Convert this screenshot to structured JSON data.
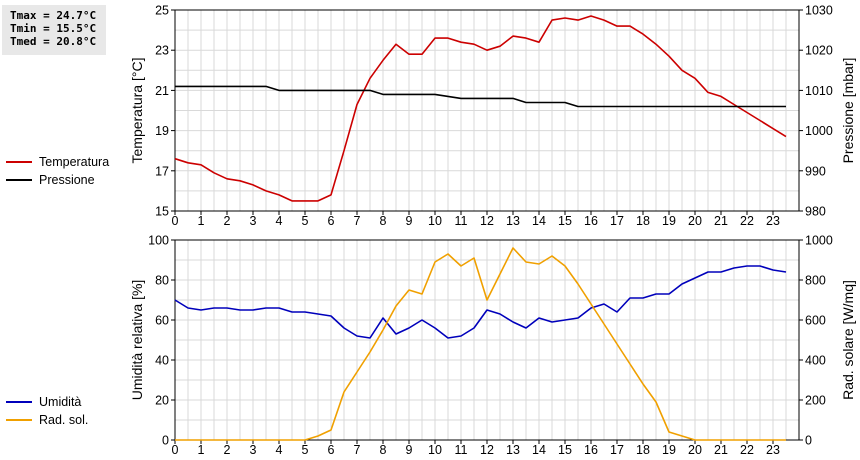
{
  "stats": {
    "tmax": "Tmax = 24.7°C",
    "tmin": "Tmin = 15.5°C",
    "tmed": "Tmed = 20.8°C"
  },
  "legend_top": [
    {
      "label": "Temperatura",
      "color": "#cc0000"
    },
    {
      "label": "Pressione",
      "color": "#000000"
    }
  ],
  "legend_bottom": [
    {
      "label": "Umidità",
      "color": "#0000bb"
    },
    {
      "label": "Rad. sol.",
      "color": "#f0a000"
    }
  ],
  "chart_data": [
    {
      "type": "line",
      "x_ticks": [
        "0",
        "1",
        "2",
        "3",
        "4",
        "5",
        "6",
        "7",
        "8",
        "9",
        "10",
        "11",
        "12",
        "13",
        "14",
        "15",
        "16",
        "17",
        "18",
        "19",
        "20",
        "21",
        "22",
        "23"
      ],
      "xlim": [
        0,
        24
      ],
      "ylabel": "Temperatura [°C]",
      "ylim": [
        15,
        25
      ],
      "yticks": [
        "15",
        "17",
        "19",
        "21",
        "23",
        "25"
      ],
      "y2label": "Pressione [mbar]",
      "y2lim": [
        980,
        1030
      ],
      "y2ticks": [
        "980",
        "990",
        "1000",
        "1010",
        "1020",
        "1030"
      ],
      "grid": true,
      "series": [
        {
          "name": "Temperatura",
          "axis": "left",
          "color": "#cc0000",
          "x": [
            0,
            0.5,
            1,
            1.5,
            2,
            2.5,
            3,
            3.5,
            4,
            4.5,
            5,
            5.5,
            6,
            6.5,
            7,
            7.5,
            8,
            8.5,
            9,
            9.5,
            10,
            10.5,
            11,
            11.5,
            12,
            12.5,
            13,
            13.5,
            14,
            14.5,
            15,
            15.5,
            16,
            16.5,
            17,
            17.5,
            18,
            18.5,
            19,
            19.5,
            20,
            20.5,
            21,
            21.5,
            22,
            22.5,
            23,
            23.5
          ],
          "values": [
            17.6,
            17.4,
            17.3,
            16.9,
            16.6,
            16.5,
            16.3,
            16.0,
            15.8,
            15.5,
            15.5,
            15.5,
            15.8,
            18.0,
            20.3,
            21.6,
            22.5,
            23.3,
            22.8,
            22.8,
            23.6,
            23.6,
            23.4,
            23.3,
            23.0,
            23.2,
            23.7,
            23.6,
            23.4,
            24.5,
            24.6,
            24.5,
            24.7,
            24.5,
            24.2,
            24.2,
            23.8,
            23.3,
            22.7,
            22.0,
            21.6,
            20.9,
            20.7,
            20.3,
            19.9,
            19.5,
            19.1,
            18.7
          ]
        },
        {
          "name": "Pressione",
          "axis": "right",
          "color": "#000000",
          "x": [
            0,
            3.5,
            4,
            7.5,
            8,
            9.5,
            10,
            11,
            11.5,
            13,
            13.5,
            15,
            15.5,
            23.5
          ],
          "values": [
            1011,
            1011,
            1010,
            1010,
            1009,
            1009,
            1009,
            1008,
            1008,
            1008,
            1007,
            1007,
            1006,
            1006
          ]
        }
      ]
    },
    {
      "type": "line",
      "x_ticks": [
        "0",
        "1",
        "2",
        "3",
        "4",
        "5",
        "6",
        "7",
        "8",
        "9",
        "10",
        "11",
        "12",
        "13",
        "14",
        "15",
        "16",
        "17",
        "18",
        "19",
        "20",
        "21",
        "22",
        "23"
      ],
      "xlim": [
        0,
        24
      ],
      "ylabel": "Umidità relativa [%]",
      "ylim": [
        0,
        100
      ],
      "yticks": [
        "0",
        "20",
        "40",
        "60",
        "80",
        "100"
      ],
      "y2label": "Rad. solare [W/mq]",
      "y2lim": [
        0,
        1000
      ],
      "y2ticks": [
        "0",
        "200",
        "400",
        "600",
        "800",
        "1000"
      ],
      "grid": true,
      "series": [
        {
          "name": "Umidità",
          "axis": "left",
          "color": "#0000bb",
          "x": [
            0,
            0.5,
            1,
            1.5,
            2,
            2.5,
            3,
            3.5,
            4,
            4.5,
            5,
            5.5,
            6,
            6.5,
            7,
            7.5,
            8,
            8.5,
            9,
            9.5,
            10,
            10.5,
            11,
            11.5,
            12,
            12.5,
            13,
            13.5,
            14,
            14.5,
            15,
            15.5,
            16,
            16.5,
            17,
            17.5,
            18,
            18.5,
            19,
            19.5,
            20,
            20.5,
            21,
            21.5,
            22,
            22.5,
            23,
            23.5
          ],
          "values": [
            70,
            66,
            65,
            66,
            66,
            65,
            65,
            66,
            66,
            64,
            64,
            63,
            62,
            56,
            52,
            51,
            61,
            53,
            56,
            60,
            56,
            51,
            52,
            56,
            65,
            63,
            59,
            56,
            61,
            59,
            60,
            61,
            66,
            68,
            64,
            71,
            71,
            73,
            73,
            78,
            81,
            84,
            84,
            86,
            87,
            87,
            85,
            84
          ]
        },
        {
          "name": "Rad. sol.",
          "axis": "right",
          "color": "#f0a000",
          "x": [
            0,
            0.5,
            1,
            1.5,
            2,
            2.5,
            3,
            3.5,
            4,
            4.5,
            5,
            5.5,
            6,
            6.5,
            7,
            7.5,
            8,
            8.5,
            9,
            9.5,
            10,
            10.5,
            11,
            11.5,
            12,
            12.5,
            13,
            13.5,
            14,
            14.5,
            15,
            15.5,
            16,
            16.5,
            17,
            17.5,
            18,
            18.5,
            19,
            19.5,
            20,
            20.5,
            21,
            21.5,
            22,
            22.5,
            23,
            23.5
          ],
          "values": [
            0,
            0,
            0,
            0,
            0,
            0,
            0,
            0,
            0,
            0,
            0,
            20,
            50,
            240,
            340,
            440,
            550,
            670,
            750,
            730,
            890,
            930,
            870,
            910,
            700,
            830,
            960,
            890,
            880,
            920,
            870,
            780,
            680,
            580,
            480,
            380,
            280,
            190,
            40,
            20,
            0,
            0,
            0,
            0,
            0,
            0,
            0,
            0
          ]
        }
      ]
    }
  ]
}
